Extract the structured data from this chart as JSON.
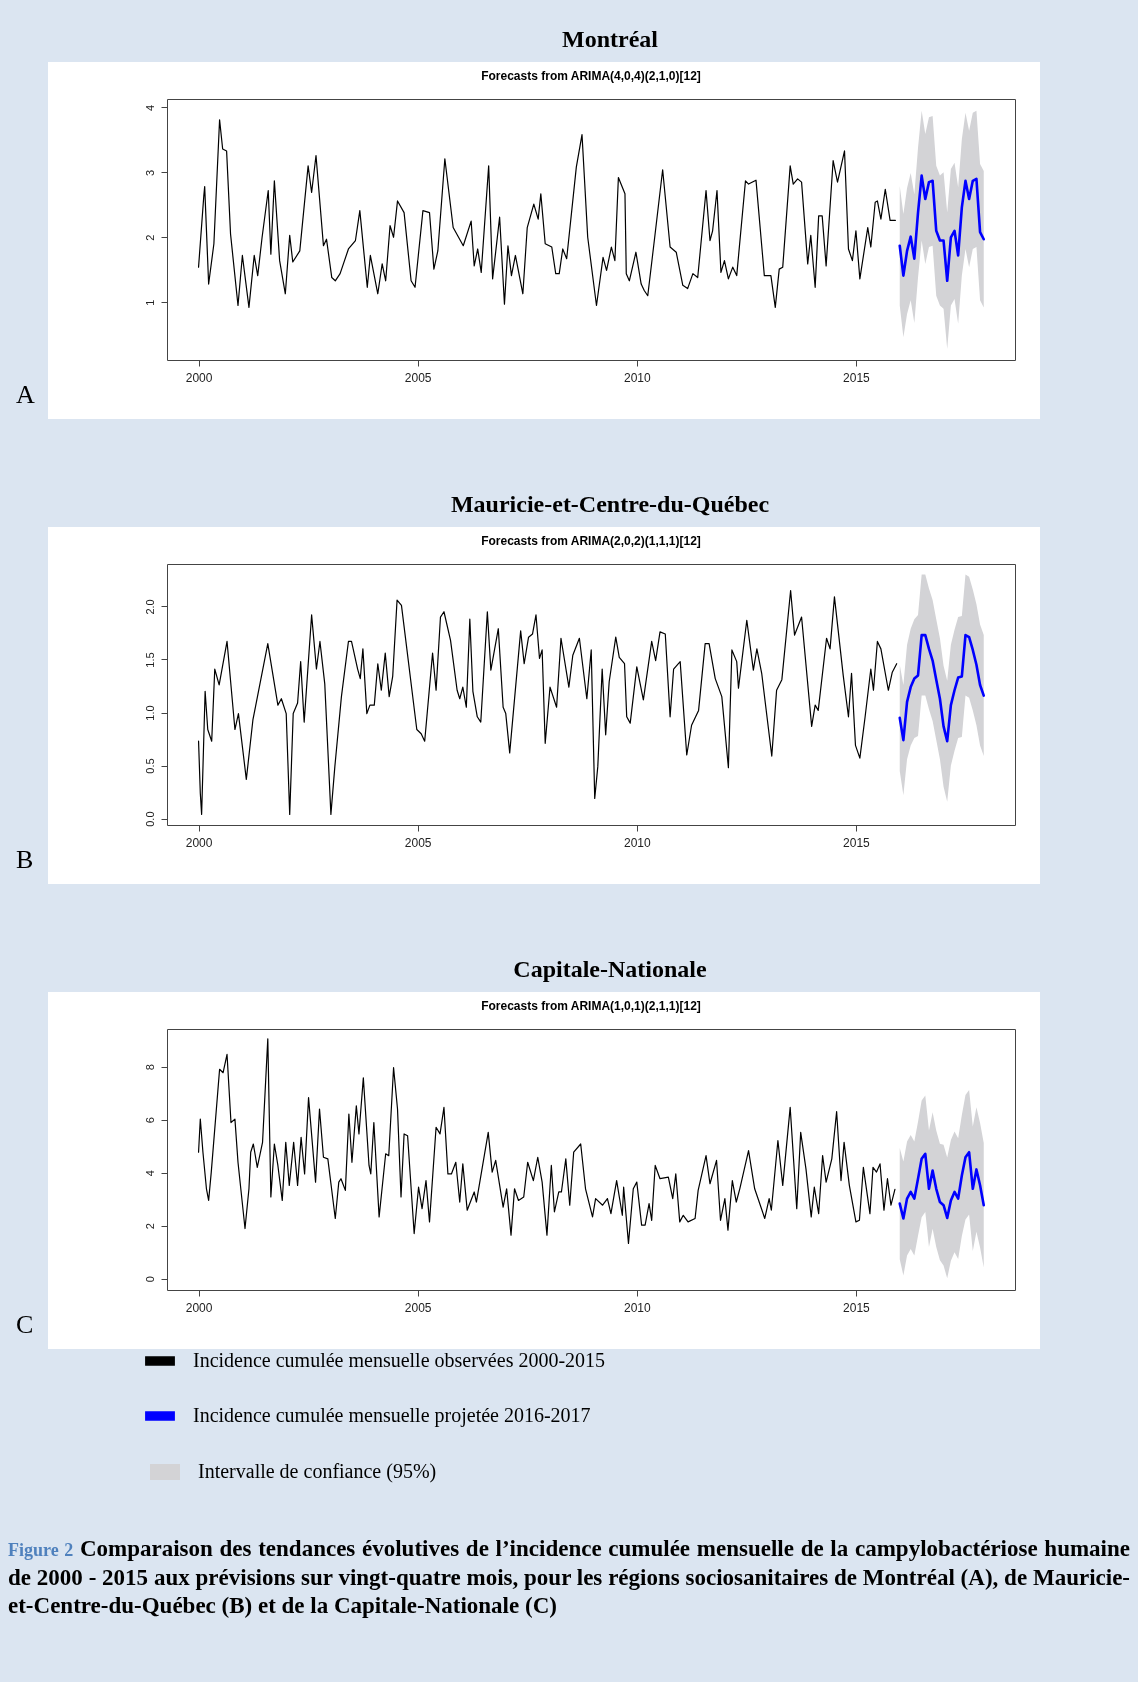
{
  "chart_data": [
    {
      "type": "line",
      "title": "Montréal",
      "subtitle": "Forecasts from ARIMA(4,0,4)(2,1,0)[12]",
      "annotations": [
        "A"
      ],
      "xlim": [
        1999.28,
        2018.63
      ],
      "xticks": [
        2000,
        2005,
        2010,
        2015
      ],
      "ylim": [
        0.11,
        4.13
      ],
      "yticks": [
        1,
        2,
        3,
        4
      ],
      "series": [
        {
          "color": "#000000",
          "x": [
            2000,
            2000.12,
            2000.14,
            2000.23,
            2000.35,
            2000.48,
            2000.55,
            2000.64,
            2000.73,
            2000.9,
            2001,
            2001.15,
            2001.27,
            2001.35,
            2001.45,
            2001.59,
            2001.65,
            2001.73,
            2001.85,
            2001.98,
            2002.08,
            2002.15,
            2002.31,
            2002.5,
            2002.58,
            2002.68,
            2002.85,
            2002.92,
            2003.04,
            2003.12,
            2003.23,
            2003.42,
            2003.58,
            2003.68,
            2003.85,
            2003.92,
            2004.09,
            2004.19,
            2004.27,
            2004.37,
            2004.45,
            2004.54,
            2004.69,
            2004.85,
            2004.94,
            2005.12,
            2005.27,
            2005.37,
            2005.46,
            2005.62,
            2005.81,
            2006.04,
            2006.22,
            2006.29,
            2006.37,
            2006.45,
            2006.62,
            2006.71,
            2006.87,
            2006.98,
            2007.06,
            2007.14,
            2007.23,
            2007.4,
            2007.5,
            2007.65,
            2007.75,
            2007.81,
            2007.91,
            2008.06,
            2008.15,
            2008.23,
            2008.31,
            2008.4,
            2008.62,
            2008.75,
            2008.88,
            2009.08,
            2009.23,
            2009.31,
            2009.42,
            2009.5,
            2009.58,
            2009.73,
            2009.76,
            2009.83,
            2009.98,
            2010.1,
            2010.17,
            2010.25,
            2010.4,
            2010.59,
            2010.76,
            2010.9,
            2011.05,
            2011.16,
            2011.28,
            2011.39,
            2011.58,
            2011.67,
            2011.73,
            2011.83,
            2011.92,
            2012,
            2012.09,
            2012.19,
            2012.28,
            2012.48,
            2012.55,
            2012.72,
            2012.91,
            2013.06,
            2013.16,
            2013.25,
            2013.33,
            2013.5,
            2013.57,
            2013.67,
            2013.76,
            2013.9,
            2013.97,
            2014.07,
            2014.15,
            2014.23,
            2014.32,
            2014.48,
            2014.58,
            2014.74,
            2014.83,
            2014.92,
            2015,
            2015.09,
            2015.27,
            2015.34,
            2015.44,
            2015.49,
            2015.57,
            2015.67,
            2015.78,
            2015.9
          ],
          "values": [
            1.54,
            2.64,
            2.78,
            1.28,
            1.9,
            3.81,
            3.36,
            3.33,
            2.05,
            0.95,
            1.72,
            0.92,
            1.72,
            1.41,
            2.0,
            2.72,
            1.74,
            2.87,
            1.64,
            1.13,
            2.03,
            1.62,
            1.79,
            3.1,
            2.69,
            3.26,
            1.87,
            1.97,
            1.38,
            1.33,
            1.44,
            1.82,
            1.95,
            2.41,
            1.23,
            1.72,
            1.13,
            1.59,
            1.33,
            2.18,
            2.0,
            2.56,
            2.38,
            1.33,
            1.23,
            2.41,
            2.38,
            1.51,
            1.79,
            3.21,
            2.15,
            1.87,
            2.25,
            1.56,
            1.82,
            1.46,
            3.1,
            1.36,
            2.31,
            0.97,
            1.87,
            1.41,
            1.72,
            1.13,
            2.15,
            2.51,
            2.28,
            2.67,
            1.9,
            1.85,
            1.44,
            1.44,
            1.82,
            1.67,
            3.08,
            3.58,
            2.0,
            0.95,
            1.69,
            1.49,
            1.85,
            1.64,
            2.92,
            2.67,
            1.44,
            1.33,
            1.77,
            1.28,
            1.18,
            1.1,
            1.95,
            3.04,
            1.85,
            1.77,
            1.26,
            1.21,
            1.44,
            1.38,
            2.72,
            1.95,
            2.1,
            2.72,
            1.46,
            1.64,
            1.36,
            1.54,
            1.41,
            2.87,
            2.82,
            2.88,
            1.41,
            1.41,
            0.92,
            1.51,
            1.54,
            3.1,
            2.82,
            2.9,
            2.85,
            1.59,
            2.03,
            1.23,
            2.33,
            2.33,
            1.56,
            3.18,
            2.85,
            3.33,
            1.82,
            1.64,
            2.1,
            1.36,
            2.15,
            1.85,
            2.54,
            2.56,
            2.28,
            2.74,
            2.26,
            2.26
          ]
        },
        {
          "color": "#0000ff",
          "x": [
            2016,
            2016.083,
            2016.167,
            2016.25,
            2016.333,
            2016.417,
            2016.5,
            2016.583,
            2016.667,
            2016.75,
            2016.833,
            2016.917,
            2017,
            2017.083,
            2017.167,
            2017.25,
            2017.333,
            2017.417,
            2017.5,
            2017.583,
            2017.667,
            2017.75,
            2017.833,
            2017.917
          ],
          "values": [
            1.87,
            1.41,
            1.79,
            2.01,
            1.67,
            2.38,
            2.95,
            2.59,
            2.85,
            2.87,
            2.1,
            1.95,
            1.95,
            1.33,
            2.0,
            2.1,
            1.72,
            2.46,
            2.87,
            2.59,
            2.87,
            2.9,
            2.08,
            1.97
          ],
          "lower": [
            0.95,
            0.46,
            0.82,
            1.03,
            0.68,
            1.38,
            1.95,
            1.59,
            1.85,
            1.87,
            1.1,
            0.95,
            0.9,
            0.28,
            0.95,
            1.05,
            0.67,
            1.41,
            1.82,
            1.54,
            1.82,
            1.85,
            1.03,
            0.92
          ],
          "upper": [
            2.79,
            2.36,
            2.76,
            2.99,
            2.66,
            3.38,
            3.95,
            3.59,
            3.85,
            3.87,
            3.1,
            2.95,
            3.0,
            2.38,
            3.05,
            3.15,
            2.77,
            3.51,
            3.92,
            3.64,
            3.92,
            3.95,
            3.13,
            3.02
          ]
        }
      ]
    },
    {
      "type": "line",
      "title": "Mauricie-et-Centre-du-Québec",
      "subtitle": "Forecasts from ARIMA(2,0,2)(1,1,1)[12]",
      "annotations": [
        "B"
      ],
      "xlim": [
        1999.28,
        2018.63
      ],
      "xticks": [
        2000,
        2005,
        2010,
        2015
      ],
      "ylim": [
        -0.06,
        2.4
      ],
      "yticks": [
        {
          "value": 0,
          "label": "0.0"
        },
        {
          "value": 0.5,
          "label": "0.5"
        },
        {
          "value": 1,
          "label": "1.0"
        },
        {
          "value": 1.5,
          "label": "1.5"
        },
        {
          "value": 2,
          "label": "2.0"
        }
      ],
      "series": [
        {
          "color": "#000000",
          "x": [
            2000,
            2000.04,
            2000.07,
            2000.11,
            2000.15,
            2000.21,
            2000.3,
            2000.37,
            2000.47,
            2000.65,
            2000.83,
            2000.91,
            2001.09,
            2001.24,
            2001.58,
            2001.81,
            2001.89,
            2002,
            2002.08,
            2002.16,
            2002.26,
            2002.33,
            2002.41,
            2002.58,
            2002.69,
            2002.77,
            2002.88,
            2003.02,
            2003.11,
            2003.26,
            2003.42,
            2003.49,
            2003.63,
            2003.69,
            2003.75,
            2003.84,
            2003.91,
            2004.01,
            2004.09,
            2004.17,
            2004.26,
            2004.35,
            2004.43,
            2004.53,
            2004.63,
            2004.98,
            2005.08,
            2005.16,
            2005.34,
            2005.42,
            2005.52,
            2005.6,
            2005.75,
            2005.9,
            2005.96,
            2006.03,
            2006.11,
            2006.19,
            2006.26,
            2006.36,
            2006.44,
            2006.59,
            2006.67,
            2006.84,
            2006.95,
            2007.01,
            2007.1,
            2007.35,
            2007.43,
            2007.53,
            2007.62,
            2007.7,
            2007.78,
            2007.84,
            2007.91,
            2008.02,
            2008.17,
            2008.27,
            2008.45,
            2008.54,
            2008.69,
            2008.86,
            2008.96,
            2009.04,
            2009.11,
            2009.21,
            2009.29,
            2009.37,
            2009.52,
            2009.6,
            2009.72,
            2009.77,
            2009.85,
            2010,
            2010.15,
            2010.34,
            2010.43,
            2010.53,
            2010.65,
            2010.76,
            2010.84,
            2010.99,
            2011.14,
            2011.25,
            2011.41,
            2011.56,
            2011.65,
            2011.79,
            2011.94,
            2012.09,
            2012.17,
            2012.28,
            2012.32,
            2012.51,
            2012.66,
            2012.74,
            2012.85,
            2013.08,
            2013.19,
            2013.31,
            2013.51,
            2013.6,
            2013.76,
            2013.99,
            2014.07,
            2014.14,
            2014.33,
            2014.41,
            2014.51,
            2014.71,
            2014.83,
            2014.9,
            2014.99,
            2015.09,
            2015.21,
            2015.34,
            2015.4,
            2015.49,
            2015.57,
            2015.74,
            2015.83,
            2015.93
          ],
          "values": [
            0.73,
            0.24,
            0.04,
            0.62,
            1.2,
            0.84,
            0.73,
            1.41,
            1.26,
            1.67,
            0.84,
            0.99,
            0.37,
            0.93,
            1.65,
            1.07,
            1.13,
            0.99,
            0.04,
            0.99,
            1.09,
            1.48,
            0.91,
            1.92,
            1.41,
            1.67,
            1.27,
            0.04,
            0.49,
            1.15,
            1.67,
            1.67,
            1.41,
            1.32,
            1.6,
            0.99,
            1.07,
            1.07,
            1.46,
            1.21,
            1.56,
            1.15,
            1.34,
            2.06,
            2.01,
            0.84,
            0.8,
            0.73,
            1.56,
            1.21,
            1.9,
            1.95,
            1.68,
            1.21,
            1.13,
            1.24,
            1.05,
            1.88,
            1.2,
            0.96,
            0.91,
            1.95,
            1.4,
            1.79,
            1.05,
            0.99,
            0.62,
            1.77,
            1.46,
            1.71,
            1.74,
            1.92,
            1.51,
            1.59,
            0.71,
            1.24,
            1.05,
            1.7,
            1.24,
            1.54,
            1.7,
            1.13,
            1.59,
            0.19,
            0.49,
            1.41,
            0.79,
            1.29,
            1.71,
            1.52,
            1.46,
            0.96,
            0.9,
            1.43,
            1.12,
            1.67,
            1.49,
            1.76,
            1.74,
            0.96,
            1.41,
            1.48,
            0.6,
            0.88,
            1.02,
            1.65,
            1.65,
            1.32,
            1.15,
            0.48,
            1.59,
            1.48,
            1.23,
            1.87,
            1.4,
            1.6,
            1.37,
            0.59,
            1.21,
            1.31,
            2.15,
            1.73,
            1.9,
            0.87,
            1.07,
            1.02,
            1.7,
            1.6,
            2.09,
            1.35,
            0.96,
            1.37,
            0.69,
            0.57,
            0.96,
            1.41,
            1.21,
            1.67,
            1.6,
            1.21,
            1.38,
            1.46
          ]
        },
        {
          "color": "#0000ff",
          "x": [
            2016,
            2016.083,
            2016.167,
            2016.25,
            2016.333,
            2016.417,
            2016.5,
            2016.583,
            2016.667,
            2016.75,
            2016.833,
            2016.917,
            2017,
            2017.083,
            2017.167,
            2017.25,
            2017.333,
            2017.417,
            2017.5,
            2017.583,
            2017.667,
            2017.75,
            2017.833,
            2017.917
          ],
          "values": [
            0.95,
            0.74,
            1.1,
            1.24,
            1.32,
            1.35,
            1.73,
            1.73,
            1.6,
            1.49,
            1.31,
            1.13,
            0.87,
            0.73,
            1.07,
            1.21,
            1.33,
            1.34,
            1.73,
            1.71,
            1.59,
            1.45,
            1.26,
            1.16
          ],
          "lower": [
            0.45,
            0.22,
            0.56,
            0.69,
            0.76,
            0.78,
            1.16,
            1.16,
            1.03,
            0.92,
            0.74,
            0.56,
            0.3,
            0.16,
            0.5,
            0.64,
            0.76,
            0.77,
            1.16,
            1.14,
            1.02,
            0.88,
            0.69,
            0.59
          ],
          "upper": [
            1.45,
            1.26,
            1.64,
            1.79,
            1.88,
            1.92,
            2.3,
            2.3,
            2.17,
            2.06,
            1.88,
            1.7,
            1.44,
            1.3,
            1.64,
            1.78,
            1.9,
            1.91,
            2.3,
            2.28,
            2.16,
            2.02,
            1.83,
            1.73
          ]
        }
      ]
    },
    {
      "type": "line",
      "title": "Capitale-Nationale",
      "subtitle": "Forecasts from ARIMA(1,0,1)(2,1,1)[12]",
      "annotations": [
        "C",
        "Intervalle de confiance (95%)",
        "Figure 2",
        "Comparaison des tendances évolutives de l’incidence cumulée mensuelle de la campylobactériose humaine de 2000 - 2015 aux prévisions sur vingt-quatre mois, pour les régions sociosanitaires de Montréal (A), de Mauricie-et-Centre-du-Québec (B) et de la Capitale-Nationale (C)"
      ],
      "xlim": [
        1999.28,
        2018.63
      ],
      "xticks": [
        2000,
        2005,
        2010,
        2015
      ],
      "ylim": [
        -0.43,
        9.42
      ],
      "yticks": [
        0,
        2,
        4,
        6,
        8
      ],
      "legend": "bottom left",
      "series": [
        {
          "name": "Incidence cumulée mensuelle observées 2000-2015",
          "color": "#000000",
          "x": [
            2000,
            2000.04,
            2000.1,
            2000.18,
            2000.23,
            2000.29,
            2000.44,
            2000.48,
            2000.56,
            2000.65,
            2000.74,
            2000.83,
            2000.9,
            2001.06,
            2001.15,
            2001.19,
            2001.25,
            2001.34,
            2001.46,
            2001.58,
            2001.65,
            2001.73,
            2001.81,
            2001.91,
            2001.99,
            2002.07,
            2002.17,
            2002.26,
            2002.34,
            2002.42,
            2002.51,
            2002.67,
            2002.76,
            2002.85,
            2002.95,
            2003.12,
            2003.2,
            2003.25,
            2003.35,
            2003.43,
            2003.5,
            2003.6,
            2003.66,
            2003.76,
            2003.89,
            2003.93,
            2004,
            2004.12,
            2004.27,
            2004.34,
            2004.45,
            2004.54,
            2004.62,
            2004.69,
            2004.77,
            2004.92,
            2005.02,
            2005.1,
            2005.19,
            2005.27,
            2005.42,
            2005.51,
            2005.6,
            2005.69,
            2005.77,
            2005.87,
            2005.96,
            2006.03,
            2006.13,
            2006.29,
            2006.34,
            2006.61,
            2006.7,
            2006.78,
            2006.95,
            2007.03,
            2007.13,
            2007.21,
            2007.3,
            2007.42,
            2007.51,
            2007.64,
            2007.74,
            2007.84,
            2007.95,
            2008.05,
            2008.12,
            2008.22,
            2008.28,
            2008.38,
            2008.47,
            2008.56,
            2008.72,
            2008.83,
            2008.99,
            2009.06,
            2009.22,
            2009.33,
            2009.41,
            2009.54,
            2009.67,
            2009.7,
            2009.81,
            2009.92,
            2010,
            2010.11,
            2010.19,
            2010.28,
            2010.34,
            2010.42,
            2010.53,
            2010.72,
            2010.82,
            2010.89,
            2010.98,
            2011.06,
            2011.17,
            2011.33,
            2011.4,
            2011.58,
            2011.67,
            2011.82,
            2011.91,
            2012.01,
            2012.08,
            2012.18,
            2012.27,
            2012.35,
            2012.55,
            2012.69,
            2012.92,
            2013.02,
            2013.07,
            2013.22,
            2013.33,
            2013.5,
            2013.65,
            2013.74,
            2013.86,
            2013.98,
            2014.05,
            2014.15,
            2014.24,
            2014.32,
            2014.45,
            2014.56,
            2014.66,
            2014.73,
            2014.85,
            2015,
            2015.08,
            2015.17,
            2015.32,
            2015.39,
            2015.47,
            2015.55,
            2015.64,
            2015.72,
            2015.8,
            2015.89
          ],
          "values": [
            4.77,
            6.02,
            4.77,
            3.39,
            2.95,
            4.02,
            7.08,
            7.9,
            7.77,
            8.46,
            5.89,
            6.02,
            4.39,
            1.89,
            3.39,
            4.77,
            5.08,
            4.2,
            5.14,
            9.05,
            3.08,
            5.08,
            4.27,
            2.95,
            5.14,
            3.52,
            5.14,
            3.52,
            5.33,
            3.95,
            6.83,
            3.64,
            6.4,
            4.58,
            4.52,
            2.27,
            3.64,
            3.77,
            3.33,
            6.21,
            4.39,
            6.52,
            5.46,
            7.58,
            4.27,
            3.95,
            5.89,
            2.33,
            4.71,
            4.64,
            7.96,
            6.4,
            3.08,
            5.46,
            5.39,
            1.7,
            3.45,
            2.64,
            3.7,
            2.14,
            5.71,
            5.46,
            6.46,
            3.95,
            3.95,
            4.39,
            2.89,
            4.33,
            2.58,
            3.27,
            2.89,
            5.52,
            4.02,
            4.46,
            2.7,
            3.39,
            1.64,
            3.39,
            2.95,
            3.08,
            4.39,
            3.7,
            4.58,
            3.64,
            1.64,
            4.27,
            2.52,
            3.27,
            3.27,
            4.52,
            2.77,
            4.77,
            5.08,
            3.39,
            2.33,
            3.02,
            2.77,
            3.02,
            2.45,
            3.7,
            2.39,
            3.45,
            1.33,
            3.39,
            3.64,
            2.02,
            2.02,
            2.83,
            2.2,
            4.27,
            3.77,
            3.83,
            3.02,
            3.95,
            2.14,
            2.39,
            2.14,
            2.27,
            3.33,
            4.64,
            3.58,
            4.46,
            2.2,
            3.02,
            1.83,
            3.7,
            2.89,
            3.39,
            4.83,
            3.39,
            2.27,
            3.02,
            2.58,
            5.21,
            3.52,
            6.46,
            2.64,
            5.52,
            4.14,
            2.33,
            3.45,
            2.45,
            4.64,
            3.64,
            4.52,
            6.3,
            3.7,
            5.14,
            3.52,
            2.14,
            2.2,
            4.2,
            2.45,
            4.2,
            4.02,
            4.33,
            2.58,
            3.77,
            2.77,
            3.37
          ]
        },
        {
          "name": "Incidence cumulée mensuelle projetée 2016-2017",
          "color": "#0000ff",
          "x": [
            2016,
            2016.083,
            2016.167,
            2016.25,
            2016.333,
            2016.417,
            2016.5,
            2016.583,
            2016.667,
            2016.75,
            2016.833,
            2016.917,
            2017,
            2017.083,
            2017.167,
            2017.25,
            2017.333,
            2017.417,
            2017.5,
            2017.583,
            2017.667,
            2017.75,
            2017.833,
            2017.917
          ],
          "values": [
            2.83,
            2.27,
            3.02,
            3.27,
            3.02,
            3.77,
            4.52,
            4.71,
            3.39,
            4.08,
            3.39,
            2.89,
            2.77,
            2.29,
            2.95,
            3.27,
            3.02,
            3.89,
            4.58,
            4.77,
            3.39,
            4.12,
            3.52,
            2.77
          ],
          "lower": [
            0.73,
            0.12,
            0.87,
            1.12,
            0.87,
            1.62,
            2.32,
            2.51,
            1.19,
            1.88,
            1.19,
            0.69,
            0.49,
            0.01,
            0.67,
            0.99,
            0.74,
            1.61,
            2.23,
            2.42,
            1.04,
            1.77,
            1.17,
            0.42
          ],
          "upper": [
            4.93,
            4.42,
            5.17,
            5.42,
            5.17,
            5.92,
            6.72,
            6.91,
            5.59,
            6.28,
            5.59,
            5.09,
            5.05,
            4.57,
            5.23,
            5.55,
            5.3,
            6.17,
            6.93,
            7.12,
            5.74,
            6.47,
            5.87,
            5.12
          ]
        }
      ]
    }
  ]
}
